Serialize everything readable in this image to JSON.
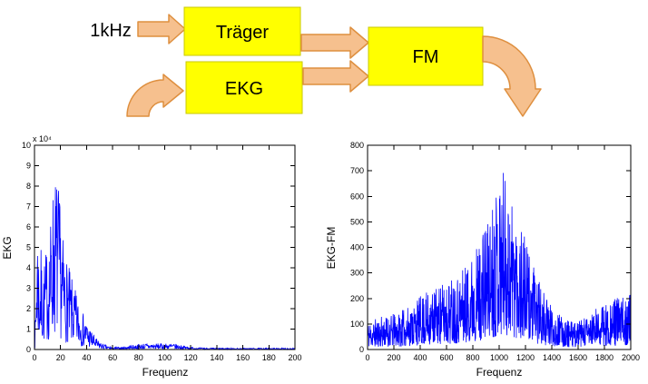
{
  "diagram": {
    "input_label": "1kHz",
    "blocks": {
      "traeger": {
        "label": "Träger"
      },
      "ekg": {
        "label": "EKG"
      },
      "fm": {
        "label": "FM"
      }
    },
    "colors": {
      "box_fill": "#FFFF00",
      "box_border": "#C8C800",
      "arrow_fill": "#F6C08E",
      "arrow_border": "#DE8F3F"
    }
  },
  "chart_data": [
    {
      "type": "line",
      "title": "",
      "xlabel": "Frequenz",
      "ylabel": "EKG",
      "y_scale_label": "x 10⁴",
      "xlim": [
        0,
        200
      ],
      "ylim": [
        0,
        10
      ],
      "xticks": [
        0,
        20,
        40,
        60,
        80,
        100,
        120,
        140,
        160,
        180,
        200
      ],
      "yticks": [
        0,
        1,
        2,
        3,
        4,
        5,
        6,
        7,
        8,
        9,
        10
      ],
      "line_color": "#0000FF",
      "description": "Amplitude spectrum of the EKG signal (units of 10^4): energy concentrated below ~50 Hz, maximum ≈ 8.7 near 16, small band ≈ 0.3 between 75 and 115, near zero above 120",
      "envelope": [
        [
          0,
          0.3
        ],
        [
          1,
          2.5
        ],
        [
          2,
          7.0
        ],
        [
          3,
          5.5
        ],
        [
          4,
          4.2
        ],
        [
          5,
          5.0
        ],
        [
          6,
          4.0
        ],
        [
          8,
          4.6
        ],
        [
          10,
          5.2
        ],
        [
          12,
          6.0
        ],
        [
          14,
          8.0
        ],
        [
          16,
          8.7
        ],
        [
          18,
          8.5
        ],
        [
          20,
          6.8
        ],
        [
          22,
          5.4
        ],
        [
          24,
          4.6
        ],
        [
          26,
          4.2
        ],
        [
          28,
          3.6
        ],
        [
          30,
          3.2
        ],
        [
          33,
          2.6
        ],
        [
          36,
          2.0
        ],
        [
          40,
          1.4
        ],
        [
          44,
          0.9
        ],
        [
          48,
          0.5
        ],
        [
          52,
          0.3
        ],
        [
          56,
          0.18
        ],
        [
          60,
          0.12
        ],
        [
          66,
          0.12
        ],
        [
          72,
          0.18
        ],
        [
          78,
          0.25
        ],
        [
          84,
          0.3
        ],
        [
          90,
          0.3
        ],
        [
          96,
          0.3
        ],
        [
          102,
          0.3
        ],
        [
          108,
          0.28
        ],
        [
          114,
          0.2
        ],
        [
          118,
          0.14
        ],
        [
          124,
          0.1
        ],
        [
          132,
          0.08
        ],
        [
          144,
          0.07
        ],
        [
          160,
          0.07
        ],
        [
          180,
          0.07
        ],
        [
          200,
          0.07
        ]
      ],
      "n_points": 760,
      "seed": 7,
      "base_frac": 0.08,
      "spike_power": 1.2
    },
    {
      "type": "line",
      "title": "",
      "xlabel": "Frequenz",
      "ylabel": "EKG-FM",
      "y_scale_label": "",
      "xlim": [
        0,
        2000
      ],
      "ylim": [
        0,
        800
      ],
      "xticks": [
        0,
        200,
        400,
        600,
        800,
        1000,
        1200,
        1400,
        1600,
        1800,
        2000
      ],
      "yticks": [
        0,
        100,
        200,
        300,
        400,
        500,
        600,
        700,
        800
      ],
      "line_color": "#0000FF",
      "description": "Amplitude spectrum of the FM-modulated EKG: broadband noise floor with a broad peak around 1000 (carrier), maximum ≈ 710, falling to ≈ 110 near 1550 and rising again toward 2000",
      "envelope": [
        [
          0,
          110
        ],
        [
          50,
          120
        ],
        [
          100,
          130
        ],
        [
          150,
          135
        ],
        [
          200,
          140
        ],
        [
          250,
          150
        ],
        [
          300,
          165
        ],
        [
          350,
          185
        ],
        [
          400,
          210
        ],
        [
          450,
          225
        ],
        [
          500,
          240
        ],
        [
          550,
          255
        ],
        [
          600,
          270
        ],
        [
          650,
          290
        ],
        [
          700,
          310
        ],
        [
          750,
          340
        ],
        [
          800,
          380
        ],
        [
          850,
          430
        ],
        [
          900,
          500
        ],
        [
          950,
          580
        ],
        [
          1000,
          700
        ],
        [
          1030,
          715
        ],
        [
          1060,
          650
        ],
        [
          1100,
          600
        ],
        [
          1150,
          520
        ],
        [
          1200,
          430
        ],
        [
          1250,
          340
        ],
        [
          1300,
          270
        ],
        [
          1350,
          210
        ],
        [
          1400,
          170
        ],
        [
          1450,
          140
        ],
        [
          1500,
          120
        ],
        [
          1550,
          110
        ],
        [
          1600,
          110
        ],
        [
          1650,
          125
        ],
        [
          1700,
          145
        ],
        [
          1750,
          165
        ],
        [
          1800,
          185
        ],
        [
          1850,
          195
        ],
        [
          1900,
          205
        ],
        [
          1950,
          215
        ],
        [
          2000,
          230
        ]
      ],
      "n_points": 1100,
      "seed": 11,
      "base_frac": 0.08,
      "spike_power": 1.3
    }
  ]
}
